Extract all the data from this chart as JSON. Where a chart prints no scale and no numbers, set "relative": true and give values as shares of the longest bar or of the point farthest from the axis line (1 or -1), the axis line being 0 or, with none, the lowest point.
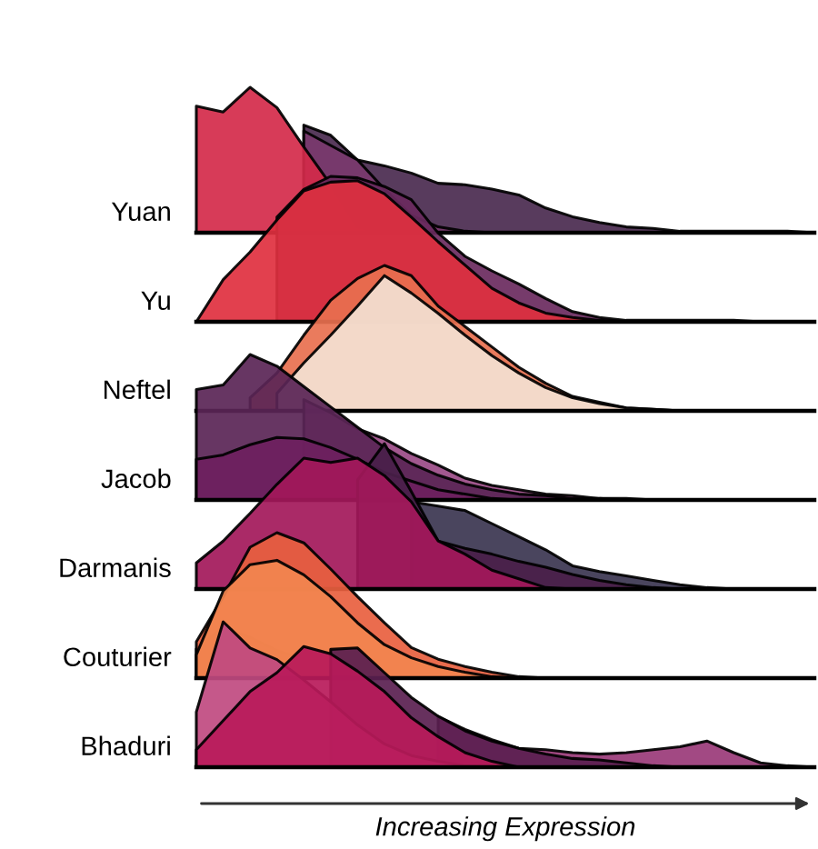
{
  "chart_data": [
    {
      "type": "area",
      "relative": true,
      "ylabel": "Yuan",
      "categories": [
        null,
        null,
        null,
        null,
        null,
        null,
        null,
        null,
        null,
        null,
        null,
        null,
        null,
        null,
        null,
        null,
        null,
        null,
        null,
        null,
        null,
        null,
        null,
        null
      ],
      "series": [
        {
          "color": "#4a2a4f",
          "values": [
            null,
            null,
            null,
            null,
            0.74,
            0.67,
            0.5,
            0.46,
            0.41,
            0.34,
            0.33,
            0.3,
            0.26,
            0.17,
            0.11,
            0.07,
            0.04,
            0.03,
            0.01,
            0.01,
            0.01,
            0.01,
            0.01,
            0
          ]
        },
        {
          "color": "#7a3a6e",
          "values": [
            null,
            null,
            null,
            null,
            0.7,
            0.6,
            0.5,
            0.3,
            0.12,
            0.04,
            0.01,
            0,
            0,
            0,
            0,
            0,
            0,
            0,
            0,
            0,
            0,
            0,
            0,
            0
          ]
        },
        {
          "color": "#d42a4a",
          "values": [
            0.87,
            0.83,
            1,
            0.86,
            0.59,
            0.33,
            0.04,
            0,
            0,
            0,
            0,
            0,
            0,
            0,
            0,
            0,
            0,
            0,
            0,
            0,
            0,
            0,
            0,
            0
          ]
        }
      ]
    },
    {
      "type": "area",
      "relative": true,
      "ylabel": "Yu",
      "categories": [
        null,
        null,
        null,
        null,
        null,
        null,
        null,
        null,
        null,
        null,
        null,
        null,
        null,
        null,
        null,
        null,
        null,
        null,
        null,
        null,
        null,
        null,
        null,
        null
      ],
      "series": [
        {
          "color": "#6a2a5e",
          "values": [
            null,
            null,
            null,
            0.72,
            0.91,
            1,
            0.99,
            0.93,
            0.84,
            0.61,
            0.45,
            0.35,
            0.26,
            0.16,
            0.07,
            0.03,
            0.01,
            0.01,
            0.01,
            0.01,
            0.01,
            0,
            0,
            0
          ]
        },
        {
          "color": "#e0303f",
          "values": [
            0,
            0.29,
            0.48,
            0.7,
            0.9,
            0.96,
            0.97,
            0.88,
            0.72,
            0.55,
            0.39,
            0.23,
            0.13,
            0.06,
            0.03,
            0.01,
            0,
            0,
            0,
            0,
            0,
            0,
            0,
            0
          ]
        }
      ]
    },
    {
      "type": "area",
      "relative": true,
      "ylabel": "Neftel",
      "categories": [
        null,
        null,
        null,
        null,
        null,
        null,
        null,
        null,
        null,
        null,
        null,
        null,
        null,
        null,
        null,
        null,
        null,
        null,
        null,
        null,
        null,
        null,
        null,
        null
      ],
      "series": [
        {
          "color": "#e8704f",
          "values": [
            null,
            null,
            0.09,
            0.26,
            0.52,
            0.76,
            0.91,
            1,
            0.93,
            0.72,
            0.58,
            0.44,
            0.3,
            0.19,
            0.1,
            0.06,
            0.02,
            0.01,
            0,
            0,
            0,
            0,
            0,
            0
          ]
        },
        {
          "color": "#f3e1d3",
          "values": [
            null,
            null,
            null,
            0.12,
            0.33,
            0.52,
            0.72,
            0.93,
            0.81,
            0.67,
            0.52,
            0.38,
            0.26,
            0.16,
            0.09,
            0.05,
            0.02,
            0.01,
            0,
            0,
            0,
            0,
            0,
            0
          ]
        }
      ]
    },
    {
      "type": "area",
      "relative": true,
      "ylabel": "Jacob",
      "categories": [
        null,
        null,
        null,
        null,
        null,
        null,
        null,
        null,
        null,
        null,
        null,
        null,
        null,
        null,
        null,
        null,
        null,
        null,
        null,
        null,
        null,
        null,
        null,
        null
      ],
      "series": [
        {
          "color": "#9a4a86",
          "values": [
            null,
            null,
            null,
            null,
            0.69,
            0.6,
            0.49,
            0.42,
            0.32,
            0.24,
            0.15,
            0.1,
            0.07,
            0.04,
            0.03,
            0.01,
            0.01,
            0,
            0,
            0,
            0,
            0,
            0,
            0
          ]
        },
        {
          "color": "#5a2556",
          "values": [
            0.76,
            0.79,
            1,
            0.92,
            0.78,
            0.64,
            0.5,
            0.36,
            0.25,
            0.17,
            0.11,
            0.07,
            0.04,
            0.03,
            0.01,
            0.01,
            0,
            0,
            0,
            0,
            0,
            0,
            0,
            0
          ]
        },
        {
          "color": "#6e1f5e",
          "values": [
            0.28,
            0.31,
            0.38,
            0.43,
            0.42,
            0.36,
            0.28,
            0.19,
            0.13,
            0.07,
            0.04,
            0.01,
            0,
            0,
            0,
            0,
            0,
            0,
            0,
            0,
            0,
            0,
            0,
            0
          ]
        }
      ]
    },
    {
      "type": "area",
      "relative": true,
      "ylabel": "Darmanis",
      "categories": [
        null,
        null,
        null,
        null,
        null,
        null,
        null,
        null,
        null,
        null,
        null,
        null,
        null,
        null,
        null,
        null,
        null,
        null,
        null,
        null,
        null,
        null,
        null,
        null
      ],
      "series": [
        {
          "color": "#3b3550",
          "values": [
            null,
            null,
            null,
            null,
            null,
            null,
            null,
            null,
            0.6,
            0.57,
            0.54,
            0.45,
            0.36,
            0.27,
            0.16,
            0.12,
            0.09,
            0.06,
            0.03,
            0.01,
            0,
            0,
            0,
            0
          ]
        },
        {
          "color": "#4a1f4a",
          "values": [
            null,
            null,
            null,
            null,
            null,
            null,
            0.75,
            1,
            0.67,
            0.33,
            0.28,
            0.24,
            0.19,
            0.15,
            0.1,
            0.06,
            0.03,
            0.01,
            0,
            0,
            0,
            0,
            0,
            0
          ]
        },
        {
          "color": "#a3185a",
          "values": [
            0.18,
            0.33,
            0.52,
            0.72,
            0.9,
            0.87,
            0.9,
            0.78,
            0.6,
            0.33,
            0.24,
            0.13,
            0.07,
            0.01,
            0,
            0,
            0,
            0,
            0,
            0,
            0,
            0,
            0,
            0
          ]
        }
      ]
    },
    {
      "type": "area",
      "relative": true,
      "ylabel": "Couturier",
      "categories": [
        null,
        null,
        null,
        null,
        null,
        null,
        null,
        null,
        null,
        null,
        null,
        null,
        null,
        null,
        null,
        null,
        null,
        null,
        null,
        null,
        null,
        null,
        null,
        null
      ],
      "series": [
        {
          "color": "#8a2a5e",
          "values": [
            0.2,
            0.35,
            0.28,
            0.19,
            0.13,
            0.03,
            0,
            0,
            0,
            0,
            0,
            0,
            0,
            0,
            0,
            0,
            0,
            0,
            0,
            0,
            0,
            0,
            0,
            0
          ]
        },
        {
          "color": "#e8603f",
          "values": [
            0.25,
            0.56,
            0.9,
            1,
            0.93,
            0.75,
            0.56,
            0.38,
            0.21,
            0.13,
            0.08,
            0.04,
            0.01,
            0,
            0,
            0,
            0,
            0,
            0,
            0,
            0,
            0,
            0,
            0
          ]
        },
        {
          "color": "#f2864f",
          "values": [
            0.16,
            0.6,
            0.78,
            0.81,
            0.71,
            0.56,
            0.38,
            0.23,
            0.14,
            0.08,
            0.04,
            0.01,
            0,
            0,
            0,
            0,
            0,
            0,
            0,
            0,
            0,
            0,
            0,
            0
          ]
        }
      ]
    },
    {
      "type": "area",
      "relative": true,
      "ylabel": "Bhaduri",
      "xlabel": "Increasing Expression",
      "categories": [
        null,
        null,
        null,
        null,
        null,
        null,
        null,
        null,
        null,
        null,
        null,
        null,
        null,
        null,
        null,
        null,
        null,
        null,
        null,
        null,
        null,
        null,
        null,
        null
      ],
      "series": [
        {
          "color": "#9a3a78",
          "values": [
            null,
            null,
            null,
            null,
            null,
            null,
            null,
            null,
            null,
            0.35,
            0.26,
            0.19,
            0.13,
            0.12,
            0.1,
            0.09,
            0.1,
            0.12,
            0.14,
            0.18,
            0.1,
            0.03,
            0.01,
            0
          ]
        },
        {
          "color": "#5a2050",
          "values": [
            null,
            null,
            null,
            null,
            null,
            0.81,
            0.82,
            0.65,
            0.48,
            0.35,
            0.25,
            0.18,
            0.13,
            0.09,
            0.06,
            0.05,
            0.03,
            0.01,
            0,
            0,
            0,
            0,
            0,
            0
          ]
        },
        {
          "color": "#c04a80",
          "values": [
            0.38,
            1,
            0.82,
            0.74,
            0.6,
            0.45,
            0.29,
            0.16,
            0.08,
            0.04,
            0.01,
            0,
            0,
            0,
            0,
            0,
            0,
            0,
            0,
            0,
            0,
            0,
            0,
            0
          ]
        },
        {
          "color": "#b81a5a",
          "values": [
            0.12,
            0.32,
            0.52,
            0.65,
            0.83,
            0.78,
            0.66,
            0.52,
            0.34,
            0.21,
            0.1,
            0.04,
            0,
            0,
            0,
            0,
            0,
            0,
            0,
            0,
            0,
            0,
            0,
            0
          ]
        }
      ]
    }
  ]
}
